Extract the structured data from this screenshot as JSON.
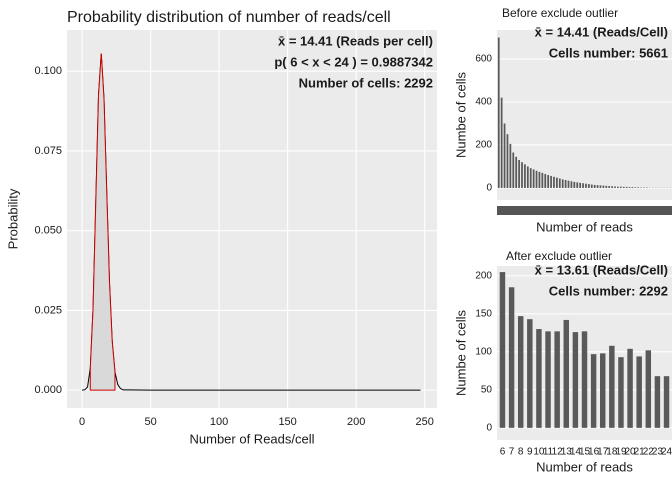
{
  "chart_data": [
    {
      "type": "line",
      "title": "Probability distribution of number of reads/cell",
      "x_label": "Number of Reads/cell",
      "y_label": "Probability",
      "annotations": [
        "x̄ =  14.41 (Reads per cell)",
        "p( 6 < x < 24 ) =  0.9887342",
        "Number of cells:  2292"
      ],
      "series": [
        {
          "color": "#000000",
          "x": [
            0,
            2,
            4,
            6,
            8,
            10,
            12,
            14,
            16,
            18,
            20,
            22,
            24,
            26,
            28,
            30,
            50,
            100,
            150,
            200,
            247
          ],
          "values": [
            0,
            0.0001,
            0.001,
            0.0069,
            0.0254,
            0.0588,
            0.0925,
            0.1055,
            0.0913,
            0.062,
            0.0338,
            0.0152,
            0.0057,
            0.0018,
            0.0005,
            0.0001,
            0,
            0,
            0,
            0,
            0
          ]
        },
        {
          "color": "#cc0000",
          "fill": "#d9d9d9",
          "x": [
            6,
            8,
            10,
            12,
            14,
            16,
            18,
            20,
            22,
            24
          ],
          "values": [
            0.0069,
            0.0254,
            0.0588,
            0.0925,
            0.1055,
            0.0913,
            0.062,
            0.0338,
            0.0152,
            0.0057
          ]
        }
      ],
      "xlim": [
        -11,
        259
      ],
      "xticks": [
        0,
        50,
        100,
        150,
        200,
        250
      ],
      "ylim": [
        -0.0056,
        0.1129
      ],
      "yticks": [
        {
          "value": 0,
          "label": "0.000"
        },
        {
          "value": 0.025,
          "label": "0.025"
        },
        {
          "value": 0.05,
          "label": "0.050"
        },
        {
          "value": 0.075,
          "label": "0.075"
        },
        {
          "value": 0.1,
          "label": "0.100"
        }
      ],
      "grid": true
    },
    {
      "type": "bar",
      "title": "Before exclude outlier",
      "x_label": "Number of reads",
      "y_label": "Numbe of cells",
      "annotations": [
        "x̄ =  14.41 (Reads/Cell)",
        "Cells number:  5661"
      ],
      "categories": [
        null,
        null,
        null,
        null,
        null,
        null,
        null,
        null,
        null,
        null,
        null,
        null,
        null,
        null,
        null,
        null,
        null,
        null,
        null,
        null,
        null,
        null,
        null,
        null,
        null,
        null,
        null,
        null,
        null,
        null,
        null,
        null,
        null,
        null,
        null,
        null,
        null,
        null,
        null,
        null,
        null,
        null,
        null,
        null,
        null,
        null,
        null,
        null,
        null,
        null,
        null,
        null,
        null,
        null,
        null,
        null,
        null,
        null,
        null,
        null
      ],
      "values": [
        700,
        420,
        300,
        250,
        205,
        165,
        145,
        130,
        120,
        110,
        100,
        92,
        86,
        80,
        75,
        70,
        65,
        60,
        56,
        52,
        48,
        44,
        40,
        37,
        34,
        31,
        28,
        26,
        24,
        22,
        20,
        18,
        16,
        14,
        13,
        12,
        11,
        10,
        9,
        8,
        7,
        6,
        6,
        5,
        5,
        4,
        4,
        3,
        3,
        2,
        2,
        2,
        1,
        1,
        1,
        1,
        1,
        1,
        1,
        1
      ],
      "color": "#595959",
      "ylim": [
        -56,
        735
      ],
      "yticks": [
        0,
        200,
        400,
        600
      ],
      "grid": true
    },
    {
      "type": "bar",
      "title": "After exclude outlier",
      "x_label": "Number of reads",
      "y_label": "Numbe of cells",
      "annotations": [
        "x̄ =  13.61 (Reads/Cell)",
        "Cells number:  2292"
      ],
      "categories": [
        "6",
        "7",
        "8",
        "9",
        "10",
        "11",
        "12",
        "13",
        "14",
        "15",
        "16",
        "17",
        "18",
        "19",
        "20",
        "21",
        "22",
        "23",
        "24"
      ],
      "values": [
        205,
        185,
        147,
        143,
        130,
        127,
        127,
        142,
        126,
        127,
        97,
        98,
        108,
        93,
        104,
        94,
        102,
        68,
        68
      ],
      "color": "#595959",
      "ylim": [
        -16,
        213
      ],
      "yticks": [
        0,
        50,
        100,
        150,
        200
      ],
      "grid": true
    }
  ]
}
